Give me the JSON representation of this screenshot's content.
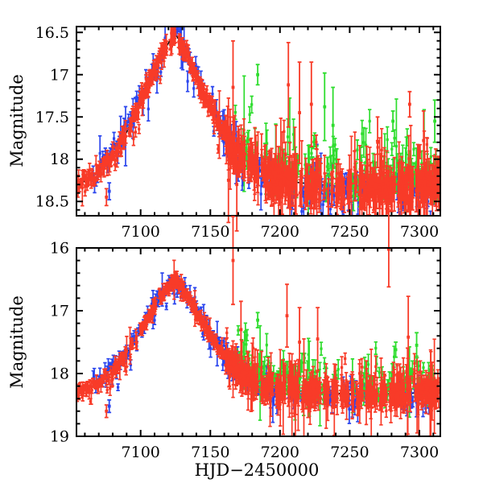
{
  "figure": {
    "xlabel": "HJD−2450000",
    "background": "#ffffff"
  },
  "colors": {
    "red": "#f83b28",
    "blue": "#2b46ee",
    "green": "#2fdd2f",
    "model": "#000000",
    "axis": "#000000"
  },
  "chart_data": [
    {
      "type": "scatter",
      "panel": "top",
      "ylabel": "Magnitude",
      "xlim": [
        7054,
        7315
      ],
      "ylim": [
        16.43,
        18.67
      ],
      "xticks": [
        7100,
        7150,
        7200,
        7250,
        7300
      ],
      "xtick_labels": [
        "7100",
        "7150",
        "7200",
        "7250",
        "7300"
      ],
      "yticks": [
        16.5,
        17.0,
        17.5,
        18.0,
        18.5
      ],
      "ytick_labels": [
        "16.5",
        "17",
        "17.5",
        "18",
        "18.5"
      ],
      "x_minor_step": 10,
      "y_minor_step": 0.1,
      "grid": false,
      "legend": "none",
      "model_curve": [
        [
          7054,
          18.3
        ],
        [
          7060,
          18.26
        ],
        [
          7066,
          18.2
        ],
        [
          7072,
          18.12
        ],
        [
          7078,
          18.01
        ],
        [
          7084,
          17.86
        ],
        [
          7090,
          17.68
        ],
        [
          7096,
          17.47
        ],
        [
          7102,
          17.24
        ],
        [
          7108,
          17.0
        ],
        [
          7113,
          16.84
        ],
        [
          7118,
          16.68
        ],
        [
          7122,
          16.57
        ],
        [
          7125,
          16.52
        ],
        [
          7128,
          16.6
        ],
        [
          7132,
          16.73
        ],
        [
          7136,
          16.88
        ],
        [
          7141,
          17.06
        ],
        [
          7146,
          17.24
        ],
        [
          7151,
          17.42
        ],
        [
          7156,
          17.58
        ],
        [
          7161,
          17.72
        ],
        [
          7167,
          17.86
        ],
        [
          7173,
          17.97
        ],
        [
          7180,
          18.07
        ],
        [
          7188,
          18.15
        ],
        [
          7198,
          18.22
        ],
        [
          7210,
          18.27
        ],
        [
          7225,
          18.3
        ],
        [
          7245,
          18.32
        ],
        [
          7265,
          18.33
        ],
        [
          7285,
          18.32
        ],
        [
          7300,
          18.31
        ],
        [
          7314,
          18.3
        ]
      ],
      "series": [
        {
          "name": "blue-event",
          "c": "blue",
          "seed": 101,
          "windows": [
            [
              7066,
              7160,
              0.9
            ]
          ],
          "bias": -0.04,
          "jitter": 0.07,
          "err": [
            0.05,
            0.15
          ],
          "big_err_prob": 0.05,
          "exc_prob": 0.12,
          "exc_amp": 0.35
        },
        {
          "name": "blue-tail",
          "c": "blue",
          "seed": 102,
          "windows": [
            [
              7159,
              7178,
              0.55
            ],
            [
              7184,
              7198,
              0.8
            ],
            [
              7206,
              7262,
              0.75
            ],
            [
              7284,
              7312,
              0.85
            ]
          ],
          "bias": 0.02,
          "jitter": 0.09,
          "err": [
            0.06,
            0.18
          ],
          "big_err_prob": 0.08,
          "exc_prob": 0.2,
          "exc_amp": 0.3
        },
        {
          "name": "green-tail",
          "c": "green",
          "seed": 103,
          "windows": [
            [
              7168,
              7242,
              0.7
            ],
            [
              7252,
              7314,
              0.65
            ]
          ],
          "bias": -0.14,
          "jitter": 0.1,
          "err": [
            0.07,
            0.2
          ],
          "big_err_prob": 0.12,
          "exc_prob": 0.25,
          "exc_amp": -0.5
        },
        {
          "name": "red-event",
          "c": "red",
          "seed": 104,
          "windows": [
            [
              7054,
              7080,
              0.5
            ],
            [
              7080,
              7161,
              0.33
            ]
          ],
          "bias": 0.0,
          "jitter": 0.055,
          "err": [
            0.045,
            0.11
          ],
          "big_err_prob": 0.05,
          "exc_prob": 0.04,
          "exc_amp": 0.25
        },
        {
          "name": "red-tail",
          "c": "red",
          "seed": 105,
          "windows": [
            [
              7161,
              7314,
              0.3
            ]
          ],
          "bias": 0.02,
          "jitter": 0.1,
          "err": [
            0.08,
            0.26
          ],
          "big_err_prob": 0.12,
          "exc_prob": 0.08,
          "exc_amp": -0.4
        }
      ],
      "outliers": [
        {
          "t": 7075.5,
          "mag": 18.45,
          "err": 0.1,
          "c": "red"
        },
        {
          "t": 7077.5,
          "mag": 18.38,
          "err": 0.1,
          "c": "blue"
        },
        {
          "t": 7166.3,
          "mag": 17.15,
          "err": 0.55,
          "c": "red"
        },
        {
          "t": 7163.0,
          "mag": 18.25,
          "err": 0.5,
          "c": "red"
        },
        {
          "t": 7169.0,
          "mag": 18.3,
          "err": 0.55,
          "c": "red"
        },
        {
          "t": 7184.0,
          "mag": 17.0,
          "err": 0.12,
          "c": "green"
        },
        {
          "t": 7206.0,
          "mag": 17.12,
          "err": 0.5,
          "c": "red"
        },
        {
          "t": 7214.0,
          "mag": 17.45,
          "err": 0.6,
          "c": "red"
        },
        {
          "t": 7222.5,
          "mag": 17.35,
          "err": 0.5,
          "c": "red"
        },
        {
          "t": 7232.0,
          "mag": 17.38,
          "err": 0.4,
          "c": "green"
        },
        {
          "t": 7238.0,
          "mag": 17.6,
          "err": 0.45,
          "c": "green"
        },
        {
          "t": 7270.0,
          "mag": 17.8,
          "err": 0.3,
          "c": "red"
        },
        {
          "t": 7281.0,
          "mag": 17.55,
          "err": 0.12,
          "c": "green"
        },
        {
          "t": 7293.0,
          "mag": 17.35,
          "err": 0.15,
          "c": "red"
        },
        {
          "t": 7303.0,
          "mag": 17.78,
          "err": 0.35,
          "c": "red"
        },
        {
          "t": 7311.0,
          "mag": 17.55,
          "err": 0.25,
          "c": "green"
        }
      ]
    },
    {
      "type": "scatter",
      "panel": "bottom",
      "ylabel": "Magnitude",
      "xlim": [
        7054,
        7315
      ],
      "ylim": [
        16.0,
        19.0
      ],
      "xticks": [
        7100,
        7150,
        7200,
        7250,
        7300
      ],
      "xtick_labels": [
        "7100",
        "7150",
        "7200",
        "7250",
        "7300"
      ],
      "yticks": [
        16.0,
        17.0,
        18.0,
        19.0
      ],
      "ytick_labels": [
        "16",
        "17",
        "18",
        "19"
      ],
      "x_minor_step": 10,
      "y_minor_step": 0.2,
      "grid": false,
      "legend": "none",
      "model_curve": [
        [
          7054,
          18.3
        ],
        [
          7060,
          18.26
        ],
        [
          7066,
          18.2
        ],
        [
          7072,
          18.12
        ],
        [
          7078,
          18.01
        ],
        [
          7084,
          17.86
        ],
        [
          7090,
          17.68
        ],
        [
          7096,
          17.47
        ],
        [
          7102,
          17.24
        ],
        [
          7108,
          17.0
        ],
        [
          7113,
          16.84
        ],
        [
          7118,
          16.68
        ],
        [
          7122,
          16.57
        ],
        [
          7125,
          16.52
        ],
        [
          7128,
          16.6
        ],
        [
          7132,
          16.73
        ],
        [
          7136,
          16.88
        ],
        [
          7141,
          17.06
        ],
        [
          7146,
          17.24
        ],
        [
          7151,
          17.42
        ],
        [
          7156,
          17.58
        ],
        [
          7161,
          17.72
        ],
        [
          7167,
          17.86
        ],
        [
          7173,
          17.97
        ],
        [
          7180,
          18.07
        ],
        [
          7188,
          18.15
        ],
        [
          7198,
          18.22
        ],
        [
          7210,
          18.27
        ],
        [
          7225,
          18.3
        ],
        [
          7245,
          18.32
        ],
        [
          7265,
          18.33
        ],
        [
          7285,
          18.32
        ],
        [
          7300,
          18.31
        ],
        [
          7314,
          18.3
        ]
      ],
      "series": [
        {
          "name": "blue-event",
          "c": "blue",
          "seed": 201,
          "windows": [
            [
              7066,
              7160,
              0.9
            ]
          ],
          "bias": -0.04,
          "jitter": 0.07,
          "err": [
            0.05,
            0.15
          ],
          "big_err_prob": 0.05,
          "exc_prob": 0.12,
          "exc_amp": 0.35
        },
        {
          "name": "blue-tail",
          "c": "blue",
          "seed": 202,
          "windows": [
            [
              7159,
              7178,
              0.55
            ],
            [
              7184,
              7198,
              0.8
            ],
            [
              7206,
              7262,
              0.75
            ],
            [
              7284,
              7312,
              0.85
            ]
          ],
          "bias": 0.02,
          "jitter": 0.09,
          "err": [
            0.06,
            0.18
          ],
          "big_err_prob": 0.08,
          "exc_prob": 0.2,
          "exc_amp": 0.3
        },
        {
          "name": "green-tail",
          "c": "green",
          "seed": 203,
          "windows": [
            [
              7168,
              7242,
              0.7
            ],
            [
              7252,
              7314,
              0.65
            ]
          ],
          "bias": -0.14,
          "jitter": 0.1,
          "err": [
            0.07,
            0.2
          ],
          "big_err_prob": 0.12,
          "exc_prob": 0.25,
          "exc_amp": -0.5
        },
        {
          "name": "red-event",
          "c": "red",
          "seed": 204,
          "windows": [
            [
              7054,
              7080,
              0.5
            ],
            [
              7080,
              7161,
              0.33
            ]
          ],
          "bias": 0.0,
          "jitter": 0.055,
          "err": [
            0.045,
            0.11
          ],
          "big_err_prob": 0.05,
          "exc_prob": 0.04,
          "exc_amp": 0.25
        },
        {
          "name": "red-tail",
          "c": "red",
          "seed": 205,
          "windows": [
            [
              7161,
              7314,
              0.3
            ]
          ],
          "bias": 0.02,
          "jitter": 0.1,
          "err": [
            0.08,
            0.26
          ],
          "big_err_prob": 0.12,
          "exc_prob": 0.08,
          "exc_amp": -0.4
        }
      ],
      "outliers": [
        {
          "t": 7075.5,
          "mag": 18.6,
          "err": 0.1,
          "c": "red"
        },
        {
          "t": 7077.5,
          "mag": 18.52,
          "err": 0.1,
          "c": "blue"
        },
        {
          "t": 7166.3,
          "mag": 16.2,
          "err": 0.7,
          "c": "red"
        },
        {
          "t": 7172.0,
          "mag": 17.3,
          "err": 0.45,
          "c": "red"
        },
        {
          "t": 7184.0,
          "mag": 17.15,
          "err": 0.12,
          "c": "green"
        },
        {
          "t": 7205.0,
          "mag": 17.08,
          "err": 0.5,
          "c": "red"
        },
        {
          "t": 7214.0,
          "mag": 17.5,
          "err": 0.55,
          "c": "red"
        },
        {
          "t": 7227.0,
          "mag": 17.45,
          "err": 0.5,
          "c": "red"
        },
        {
          "t": 7278.0,
          "mag": 16.02,
          "err": 0.6,
          "c": "red"
        },
        {
          "t": 7292.0,
          "mag": 17.42,
          "err": 0.65,
          "c": "red"
        },
        {
          "t": 7283.0,
          "mag": 17.62,
          "err": 0.12,
          "c": "green"
        },
        {
          "t": 7298.0,
          "mag": 17.55,
          "err": 0.2,
          "c": "green"
        }
      ]
    }
  ]
}
